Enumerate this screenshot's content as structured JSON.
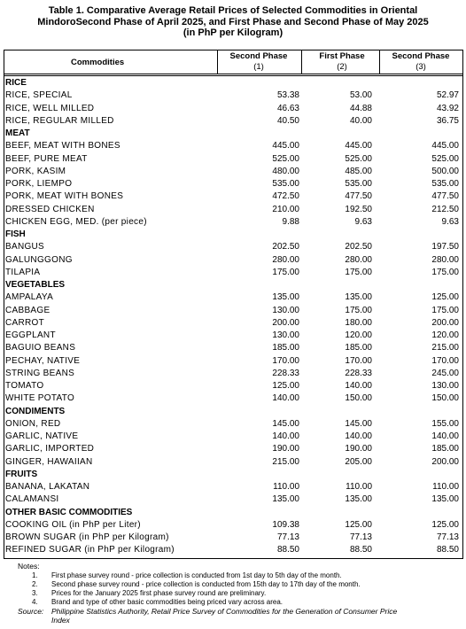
{
  "title": [
    "Table 1. Comparative Average Retail Prices of Selected Commodities in Oriental",
    "MindoroSecond Phase of April 2025, and First Phase and Second Phase of May 2025",
    "(in PhP per Kilogram)"
  ],
  "table": {
    "header": {
      "commodities": "Commodities",
      "columns": [
        [
          "Second Phase",
          "(1)"
        ],
        [
          "First Phase",
          "(2)"
        ],
        [
          "Second Phase",
          "(3)"
        ]
      ]
    },
    "sections": [
      {
        "name": "RICE",
        "rows": [
          [
            "RICE, SPECIAL",
            "53.38",
            "53.00",
            "52.97"
          ],
          [
            "RICE, WELL MILLED",
            "46.63",
            "44.88",
            "43.92"
          ],
          [
            "RICE, REGULAR MILLED",
            "40.50",
            "40.00",
            "36.75"
          ]
        ]
      },
      {
        "name": "MEAT",
        "rows": [
          [
            "BEEF, MEAT WITH BONES",
            "445.00",
            "445.00",
            "445.00"
          ],
          [
            "BEEF, PURE MEAT",
            "525.00",
            "525.00",
            "525.00"
          ],
          [
            "PORK, KASIM",
            "480.00",
            "485.00",
            "500.00"
          ],
          [
            "PORK, LIEMPO",
            "535.00",
            "535.00",
            "535.00"
          ],
          [
            "PORK, MEAT WITH BONES",
            "472.50",
            "477.50",
            "477.50"
          ],
          [
            "DRESSED CHICKEN",
            "210.00",
            "192.50",
            "212.50"
          ],
          [
            "CHICKEN EGG, MED. (per piece)",
            "9.88",
            "9.63",
            "9.63"
          ]
        ]
      },
      {
        "name": "FISH",
        "rows": [
          [
            "BANGUS",
            "202.50",
            "202.50",
            "197.50"
          ],
          [
            "GALUNGGONG",
            "280.00",
            "280.00",
            "280.00"
          ],
          [
            "TILAPIA",
            "175.00",
            "175.00",
            "175.00"
          ]
        ]
      },
      {
        "name": "VEGETABLES",
        "rows": [
          [
            "AMPALAYA",
            "135.00",
            "135.00",
            "125.00"
          ],
          [
            "CABBAGE",
            "130.00",
            "175.00",
            "175.00"
          ],
          [
            "CARROT",
            "200.00",
            "180.00",
            "200.00"
          ],
          [
            "EGGPLANT",
            "130.00",
            "120.00",
            "120.00"
          ],
          [
            "BAGUIO BEANS",
            "185.00",
            "185.00",
            "215.00"
          ],
          [
            "PECHAY, NATIVE",
            "170.00",
            "170.00",
            "170.00"
          ],
          [
            "STRING BEANS",
            "228.33",
            "228.33",
            "245.00"
          ],
          [
            "TOMATO",
            "125.00",
            "140.00",
            "130.00"
          ],
          [
            "WHITE POTATO",
            "140.00",
            "150.00",
            "150.00"
          ]
        ]
      },
      {
        "name": "CONDIMENTS",
        "rows": [
          [
            "ONION, RED",
            "145.00",
            "145.00",
            "155.00"
          ],
          [
            "GARLIC, NATIVE",
            "140.00",
            "140.00",
            "140.00"
          ],
          [
            "GARLIC, IMPORTED",
            "190.00",
            "190.00",
            "185.00"
          ],
          [
            "GINGER, HAWAIIAN",
            "215.00",
            "205.00",
            "200.00"
          ]
        ]
      },
      {
        "name": "FRUITS",
        "rows": [
          [
            "BANANA, LAKATAN",
            "110.00",
            "110.00",
            "110.00"
          ],
          [
            "CALAMANSI",
            "135.00",
            "135.00",
            "135.00"
          ]
        ]
      },
      {
        "name": "OTHER BASIC COMMODITIES",
        "rows": [
          [
            "COOKING OIL (in PhP per Liter)",
            "109.38",
            "125.00",
            "125.00"
          ],
          [
            "BROWN SUGAR (in PhP per Kilogram)",
            "77.13",
            "77.13",
            "77.13"
          ],
          [
            "REFINED SUGAR (in PhP per Kilogram)",
            "88.50",
            "88.50",
            "88.50"
          ]
        ]
      }
    ]
  },
  "notes": {
    "label": "Notes:",
    "items": [
      {
        "number": "1.",
        "text": "First phase survey round - price collection is conducted from 1st day to 5th day of the month."
      },
      {
        "number": "2.",
        "text": "Second phase survey round - price collection is conducted from 15th day to 17th day of the month."
      },
      {
        "number": "3.",
        "text": "Prices for the January 2025 first phase survey round are preliminary."
      },
      {
        "number": "4.",
        "text": "Brand and type of other basic commodities being priced vary across area."
      }
    ]
  },
  "source": {
    "label": "Source:",
    "text": [
      "Philippine Statistics Authority, Retail Price Survey of Commodities for the Generation of Consumer Price",
      "Index"
    ]
  }
}
